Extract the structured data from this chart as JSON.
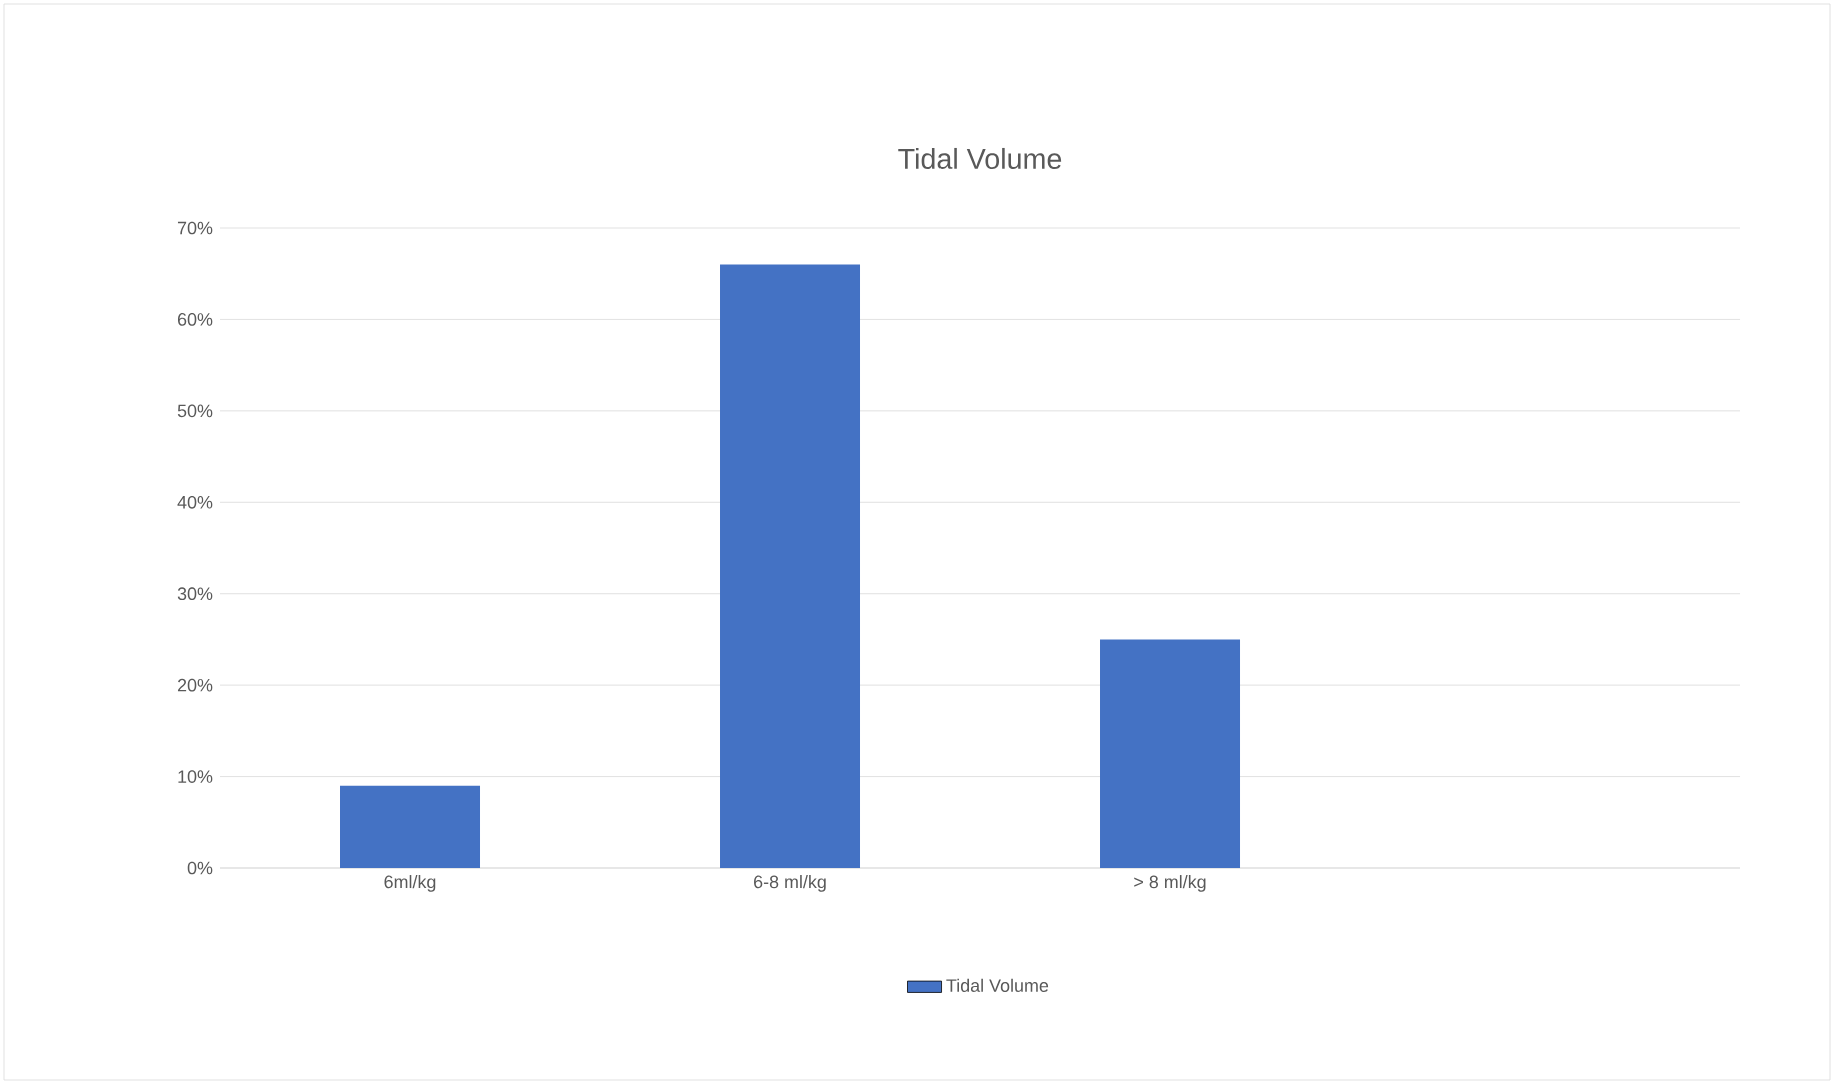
{
  "chart_data": {
    "type": "bar",
    "title": "Tidal Volume",
    "categories": [
      "6ml/kg",
      "6-8 ml/kg",
      "> 8 ml/kg",
      null
    ],
    "series": [
      {
        "name": "Tidal Volume",
        "color": "#4472c4",
        "values": [
          9,
          66,
          25,
          null
        ]
      }
    ],
    "ylim": [
      0,
      70
    ],
    "yticks": [
      {
        "value": 0,
        "label": "0%"
      },
      {
        "value": 10,
        "label": "10%"
      },
      {
        "value": 20,
        "label": "20%"
      },
      {
        "value": 30,
        "label": "30%"
      },
      {
        "value": 40,
        "label": "40%"
      },
      {
        "value": 50,
        "label": "50%"
      },
      {
        "value": 60,
        "label": "60%"
      },
      {
        "value": 70,
        "label": "70%"
      }
    ],
    "grid": "y",
    "legend": "bottom"
  }
}
